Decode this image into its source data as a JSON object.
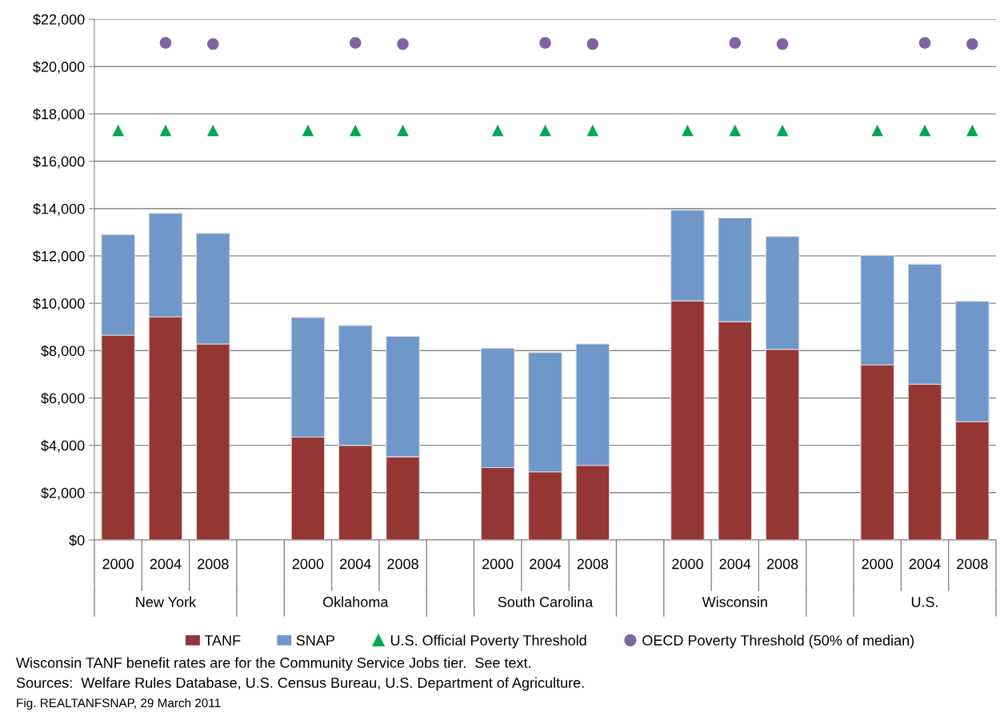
{
  "chart_data": {
    "type": "bar",
    "stacked": true,
    "categories": [
      "2000",
      "2004",
      "2008",
      null,
      "2000",
      "2004",
      "2008",
      null,
      "2000",
      "2004",
      "2008",
      null,
      "2000",
      "2004",
      "2008",
      null,
      "2000",
      "2004",
      "2008"
    ],
    "series": [
      {
        "name": "TANF",
        "color": "#943634",
        "values": [
          8650,
          9430,
          8280,
          null,
          4350,
          4000,
          3520,
          null,
          3060,
          2880,
          3150,
          null,
          10100,
          9220,
          8050,
          null,
          7400,
          6580,
          5000
        ]
      },
      {
        "name": "SNAP",
        "color": "#6f97c9",
        "values": [
          4250,
          4370,
          4670,
          null,
          5050,
          5060,
          5080,
          null,
          5040,
          5040,
          5130,
          null,
          3830,
          4380,
          4770,
          null,
          4620,
          5070,
          5080
        ]
      },
      {
        "name": "U.S. Official Poverty Threshold",
        "type": "scatter",
        "marker": "triangle",
        "color": "#00a850",
        "values": [
          17300,
          17300,
          17300,
          null,
          17300,
          17300,
          17300,
          null,
          17300,
          17300,
          17300,
          null,
          17300,
          17300,
          17300,
          null,
          17300,
          17300,
          17300
        ]
      },
      {
        "name": "OECD Poverty Threshold (50% of median)",
        "type": "scatter",
        "marker": "circle",
        "color": "#8064a2",
        "values": [
          null,
          21000,
          20950,
          null,
          null,
          21000,
          20950,
          null,
          null,
          21000,
          20950,
          null,
          null,
          21000,
          20950,
          null,
          null,
          21000,
          20950
        ]
      }
    ],
    "ylim": [
      0,
      22000
    ],
    "yticks": [
      {
        "value": 0,
        "label": "$0"
      },
      {
        "value": 2000,
        "label": "$2,000"
      },
      {
        "value": 4000,
        "label": "$4,000"
      },
      {
        "value": 6000,
        "label": "$6,000"
      },
      {
        "value": 8000,
        "label": "$8,000"
      },
      {
        "value": 10000,
        "label": "$10,000"
      },
      {
        "value": 12000,
        "label": "$12,000"
      },
      {
        "value": 14000,
        "label": "$14,000"
      },
      {
        "value": 16000,
        "label": "$16,000"
      },
      {
        "value": 18000,
        "label": "$18,000"
      },
      {
        "value": 20000,
        "label": "$20,000"
      },
      {
        "value": 22000,
        "label": "$22,000"
      }
    ],
    "grid": "y",
    "legend": "bottom",
    "annotations": [
      "New York",
      "Oklahoma",
      "South Carolina",
      "Wisconsin",
      "U.S.",
      "Wisconsin TANF benefit rates are for the Community Service Jobs tier.  See text.",
      "Sources:  Welfare Rules Database, U.S. Census Bureau, U.S. Department of Agriculture.",
      "Fig. REALTANFSNAP, 29 March 2011"
    ]
  }
}
